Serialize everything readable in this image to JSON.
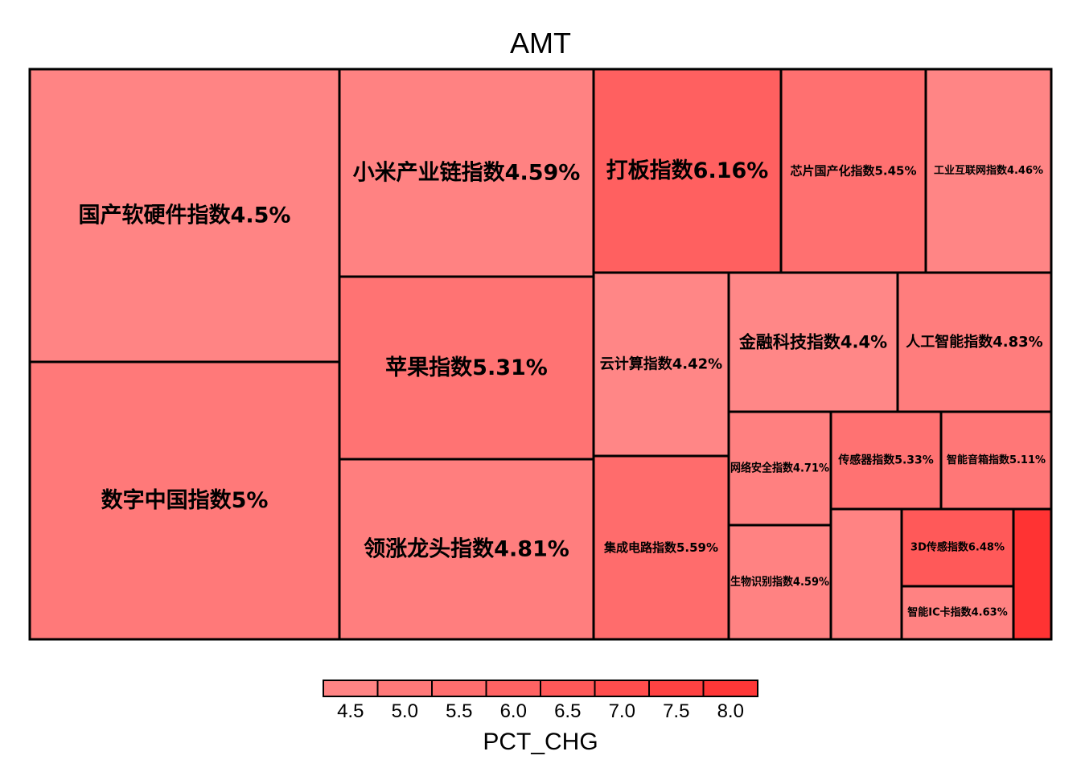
{
  "chart_data": {
    "type": "treemap",
    "title": "AMT",
    "color_variable": "PCT_CHG",
    "color_scale": {
      "low_color": "#FF8B8B",
      "high_color": "#FF3333",
      "min": 4.2,
      "max": 8.2,
      "ticks": [
        "4.5",
        "5.0",
        "5.5",
        "6.0",
        "6.5",
        "7.0",
        "7.5",
        "8.0"
      ]
    },
    "items": [
      {
        "label": "国产软硬件指数4.5%",
        "value": 4.5
      },
      {
        "label": "数字中国指数5%",
        "value": 5.0
      },
      {
        "label": "小米产业链指数4.59%",
        "value": 4.59
      },
      {
        "label": "苹果指数5.31%",
        "value": 5.31
      },
      {
        "label": "领涨龙头指数4.81%",
        "value": 4.81
      },
      {
        "label": "打板指数6.16%",
        "value": 6.16
      },
      {
        "label": "芯片国产化指数5.45%",
        "value": 5.45
      },
      {
        "label": "工业互联网指数4.46%",
        "value": 4.46
      },
      {
        "label": "云计算指数4.42%",
        "value": 4.42
      },
      {
        "label": "集成电路指数5.59%",
        "value": 5.59
      },
      {
        "label": "金融科技指数4.4%",
        "value": 4.4
      },
      {
        "label": "人工智能指数4.83%",
        "value": 4.83
      },
      {
        "label": "网络安全指数4.71%",
        "value": 4.71
      },
      {
        "label": "传感器指数5.33%",
        "value": 5.33
      },
      {
        "label": "智能音箱指数5.11%",
        "value": 5.11
      },
      {
        "label": "生物识别指数4.59%",
        "value": 4.59
      },
      {
        "label": "",
        "value": 4.55
      },
      {
        "label": "3D传感指数6.48%",
        "value": 6.48
      },
      {
        "label": "智能IC卡指数4.63%",
        "value": 4.63
      },
      {
        "label": "",
        "value": 8.2
      }
    ]
  }
}
